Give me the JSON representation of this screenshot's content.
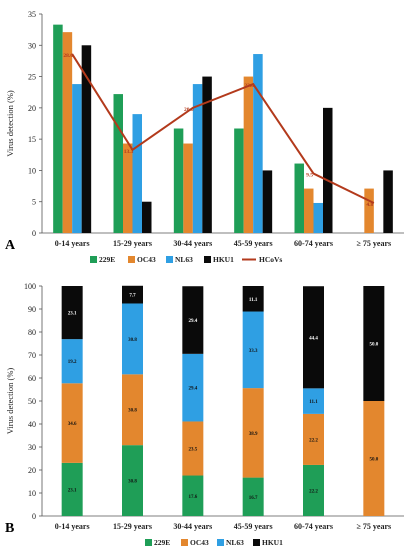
{
  "colors": {
    "229E": "#1f9e57",
    "OC43": "#e3872e",
    "NL63": "#2f9fe3",
    "HKU1": "#0a0a0a",
    "HCoVs": "#b33a1c"
  },
  "chart_data": [
    {
      "panel": "A",
      "type": "bar",
      "ylabel": "Virus detection (%)",
      "ylim": [
        0,
        35
      ],
      "yticks": [
        0,
        5,
        10,
        15,
        20,
        25,
        30,
        35
      ],
      "categories": [
        "0-14 years",
        "15-29 years",
        "30-44 years",
        "45-59 years",
        "60-74 years",
        "≥ 75 years"
      ],
      "series": [
        {
          "name": "229E",
          "color_key": "229E",
          "values": [
            33.3,
            22.2,
            16.7,
            16.7,
            11.1,
            0
          ]
        },
        {
          "name": "OC43",
          "color_key": "OC43",
          "values": [
            32.1,
            14.3,
            14.3,
            25.0,
            7.1,
            7.1
          ]
        },
        {
          "name": "NL63",
          "color_key": "NL63",
          "values": [
            23.8,
            19.0,
            23.8,
            28.6,
            4.8,
            0
          ]
        },
        {
          "name": "HKU1",
          "color_key": "HKU1",
          "values": [
            30.0,
            5.0,
            25.0,
            10.0,
            20.0,
            10.0
          ]
        }
      ],
      "line": {
        "name": "HCoVs",
        "color_key": "HCoVs",
        "values": [
          28.6,
          13.3,
          20.0,
          23.8,
          9.5,
          4.8
        ],
        "labels": [
          "28.6",
          "13.3",
          "20.0",
          "23.8",
          "9.5",
          "4.8"
        ]
      },
      "legend": "bottom"
    },
    {
      "panel": "B",
      "type": "bar",
      "stacked": true,
      "ylabel": "Virus detection (%)",
      "ylim": [
        0,
        100
      ],
      "yticks": [
        0,
        10,
        20,
        30,
        40,
        50,
        60,
        70,
        80,
        90,
        100
      ],
      "categories": [
        "0-14 years",
        "15-29 years",
        "30-44 years",
        "45-59 years",
        "60-74 years",
        "≥ 75 years"
      ],
      "series": [
        {
          "name": "229E",
          "color_key": "229E",
          "values": [
            23.1,
            30.8,
            17.6,
            16.7,
            22.2,
            0
          ],
          "labels": [
            "23.1",
            "30.8",
            "17.6",
            "16.7",
            "22.2",
            ""
          ]
        },
        {
          "name": "OC43",
          "color_key": "OC43",
          "values": [
            34.6,
            30.8,
            23.5,
            38.9,
            22.2,
            50.0
          ],
          "labels": [
            "34.6",
            "30.8",
            "23.5",
            "38.9",
            "22.2",
            "50.0"
          ]
        },
        {
          "name": "NL63",
          "color_key": "NL63",
          "values": [
            19.2,
            30.8,
            29.4,
            33.3,
            11.1,
            0
          ],
          "labels": [
            "19.2",
            "30.8",
            "29.4",
            "33.3",
            "11.1",
            ""
          ]
        },
        {
          "name": "HKU1",
          "color_key": "HKU1",
          "values": [
            23.1,
            7.7,
            29.4,
            11.1,
            44.4,
            50.0
          ],
          "labels": [
            "23.1",
            "7.7",
            "29.4",
            "11.1",
            "44.4",
            "50.0"
          ]
        }
      ],
      "legend": "bottom"
    }
  ]
}
